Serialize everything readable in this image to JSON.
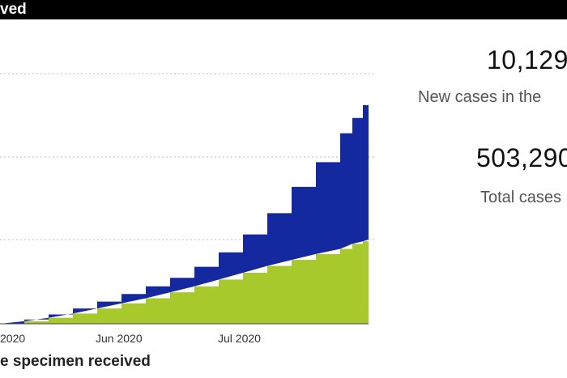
{
  "header": {
    "title": "ved"
  },
  "kpis": [
    {
      "value": "10,129",
      "label": "New cases in the"
    },
    {
      "value": "503,290",
      "label": "Total cases"
    }
  ],
  "chart": {
    "x_axis_caption": "e specimen received"
  },
  "chart_data": {
    "type": "area",
    "stacked": true,
    "title": "",
    "xlabel": "e specimen received",
    "ylabel": "",
    "x_tick_labels": [
      "2020",
      "Jun 2020",
      "Jul 2020"
    ],
    "grid": true,
    "x": [
      0,
      30,
      60,
      90,
      120,
      150,
      180,
      210,
      240,
      270,
      300,
      330,
      360,
      390,
      420,
      435,
      448,
      455
    ],
    "series": [
      {
        "color": "#a8c92b",
        "values": [
          0,
          3,
          7,
          12,
          18,
          24,
          30,
          37,
          44,
          52,
          60,
          68,
          75,
          82,
          88,
          94,
          97,
          99
        ]
      },
      {
        "color": "#1428a0",
        "values": [
          0,
          2,
          4,
          6,
          8,
          11,
          14,
          17,
          23,
          32,
          45,
          62,
          86,
          108,
          136,
          148,
          160,
          163
        ]
      }
    ],
    "ylim": [
      0,
      295
    ]
  }
}
